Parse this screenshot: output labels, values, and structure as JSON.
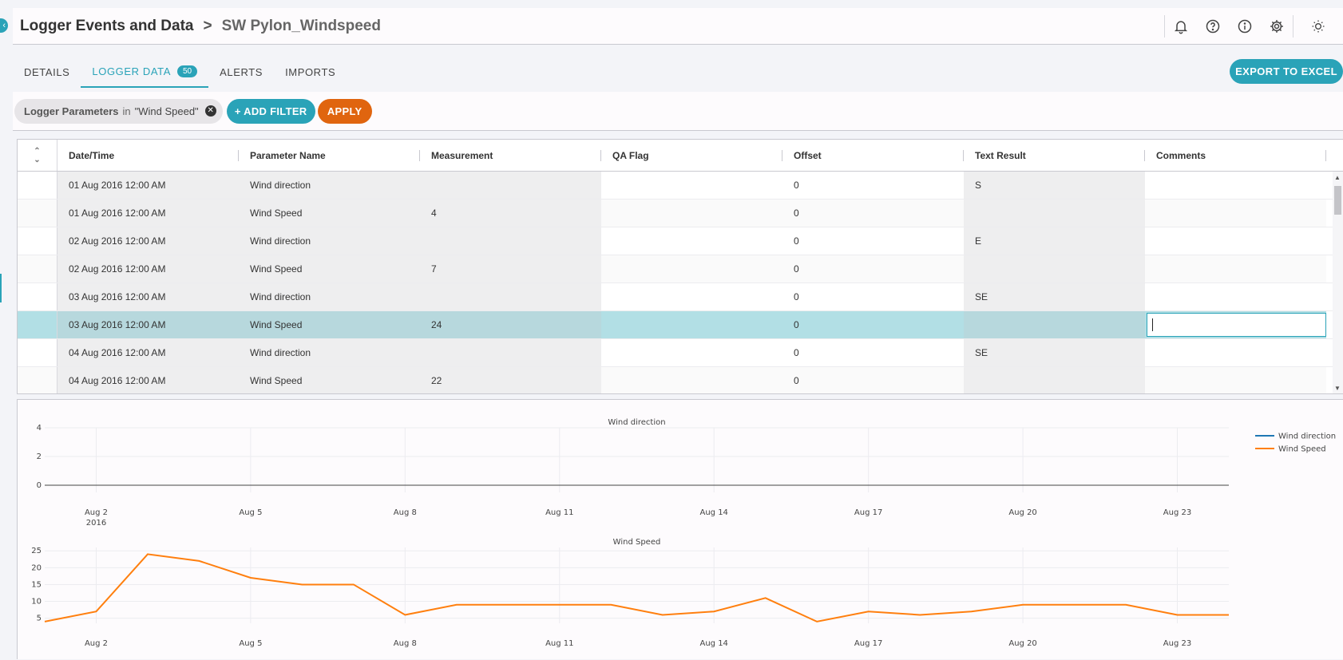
{
  "header": {
    "title": "Logger Events and Data",
    "separator": ">",
    "current": "SW Pylon_Windspeed",
    "icons": [
      "bell-icon",
      "help-icon",
      "info-icon",
      "gear-icon",
      "brightness-icon"
    ]
  },
  "tabs": [
    {
      "label": "DETAILS",
      "active": false
    },
    {
      "label": "LOGGER DATA",
      "badge": "50",
      "active": true
    },
    {
      "label": "ALERTS",
      "active": false
    },
    {
      "label": "IMPORTS",
      "active": false
    }
  ],
  "export_label": "EXPORT TO EXCEL",
  "filter": {
    "chip_key": "Logger Parameters",
    "chip_op": "in",
    "chip_value": "\"Wind Speed\"",
    "add_label": "+ ADD FILTER",
    "apply_label": "APPLY"
  },
  "table": {
    "columns": [
      "Date/Time",
      "Parameter Name",
      "Measurement",
      "QA Flag",
      "Offset",
      "Text Result",
      "Comments"
    ],
    "rows": [
      [
        "01 Aug 2016 12:00 AM",
        "Wind direction",
        "",
        "",
        "0",
        "S",
        ""
      ],
      [
        "01 Aug 2016 12:00 AM",
        "Wind Speed",
        "4",
        "",
        "0",
        "",
        ""
      ],
      [
        "02 Aug 2016 12:00 AM",
        "Wind direction",
        "",
        "",
        "0",
        "E",
        ""
      ],
      [
        "02 Aug 2016 12:00 AM",
        "Wind Speed",
        "7",
        "",
        "0",
        "",
        ""
      ],
      [
        "03 Aug 2016 12:00 AM",
        "Wind direction",
        "",
        "",
        "0",
        "SE",
        ""
      ],
      [
        "03 Aug 2016 12:00 AM",
        "Wind Speed",
        "24",
        "",
        "0",
        "",
        ""
      ],
      [
        "04 Aug 2016 12:00 AM",
        "Wind direction",
        "",
        "",
        "0",
        "SE",
        ""
      ],
      [
        "04 Aug 2016 12:00 AM",
        "Wind Speed",
        "22",
        "",
        "0",
        "",
        ""
      ]
    ],
    "selected_row": 5
  },
  "colors": {
    "accent": "#2aa3b8",
    "apply": "#e0650f",
    "wind_direction": "#1f77b4",
    "wind_speed": "#ff7f0e"
  },
  "chart_data": [
    {
      "type": "line",
      "title": "Wind direction",
      "x_tick_labels": [
        "Aug 2\n2016",
        "Aug 5",
        "Aug 8",
        "Aug 11",
        "Aug 14",
        "Aug 17",
        "Aug 20",
        "Aug 23"
      ],
      "y_ticks": [
        0,
        2,
        4
      ],
      "ylim": [
        -0.5,
        4
      ],
      "xlim": [
        "2016-08-01",
        "2016-08-24"
      ],
      "grid": true,
      "legend": "top-right",
      "series": [
        {
          "name": "Wind direction",
          "x": [],
          "y": []
        }
      ]
    },
    {
      "type": "line",
      "title": "Wind Speed",
      "x_tick_labels": [
        "Aug 2",
        "Aug 5",
        "Aug 8",
        "Aug 11",
        "Aug 14",
        "Aug 17",
        "Aug 20",
        "Aug 23"
      ],
      "y_ticks": [
        5,
        10,
        15,
        20,
        25
      ],
      "ylim": [
        3.5,
        26
      ],
      "xlim": [
        "2016-08-01",
        "2016-08-24"
      ],
      "grid": true,
      "legend": "top-right",
      "series": [
        {
          "name": "Wind Speed",
          "x": [
            "2016-08-01",
            "2016-08-02",
            "2016-08-03",
            "2016-08-04",
            "2016-08-05",
            "2016-08-06",
            "2016-08-07",
            "2016-08-08",
            "2016-08-09",
            "2016-08-10",
            "2016-08-11",
            "2016-08-12",
            "2016-08-13",
            "2016-08-14",
            "2016-08-15",
            "2016-08-16",
            "2016-08-17",
            "2016-08-18",
            "2016-08-19",
            "2016-08-20",
            "2016-08-21",
            "2016-08-22",
            "2016-08-23",
            "2016-08-24"
          ],
          "y": [
            4,
            7,
            24,
            22,
            17,
            15,
            15,
            6,
            9,
            9,
            9,
            9,
            6,
            7,
            11,
            4,
            7,
            6,
            7,
            9,
            9,
            9,
            6,
            6
          ]
        }
      ]
    }
  ]
}
